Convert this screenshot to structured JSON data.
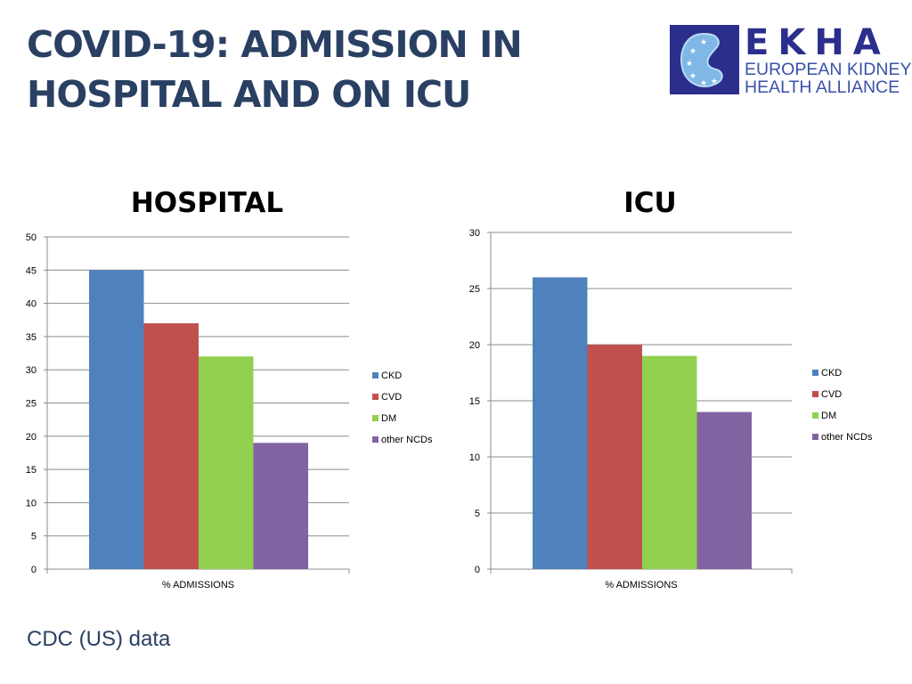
{
  "slide": {
    "title": "COVID-19: ADMISSION IN\nHOSPITAL AND ON ICU",
    "source_note": "CDC (US) data"
  },
  "logo": {
    "word": "EKHA",
    "line1": "EUROPEAN KIDNEY",
    "line2": "HEALTH ALLIANCE",
    "colors": {
      "mark": "#2b2e8c",
      "text": "#3a52a8"
    }
  },
  "chart_data": [
    {
      "type": "bar",
      "title": "HOSPITAL",
      "categories": [
        "% ADMISSIONS"
      ],
      "series": [
        {
          "name": "CKD",
          "values": [
            45
          ],
          "color": "#4f81bd"
        },
        {
          "name": "CVD",
          "values": [
            37
          ],
          "color": "#c0504d"
        },
        {
          "name": "DM",
          "values": [
            32
          ],
          "color": "#92d050"
        },
        {
          "name": "other NCDs",
          "values": [
            19
          ],
          "color": "#8064a2"
        }
      ],
      "ylim": [
        0,
        50
      ],
      "yticks": [
        0,
        5,
        10,
        15,
        20,
        25,
        30,
        35,
        40,
        45,
        50
      ],
      "grid": true,
      "legend": "right"
    },
    {
      "type": "bar",
      "title": "ICU",
      "categories": [
        "% ADMISSIONS"
      ],
      "series": [
        {
          "name": "CKD",
          "values": [
            26
          ],
          "color": "#4f81bd"
        },
        {
          "name": "CVD",
          "values": [
            20
          ],
          "color": "#c0504d"
        },
        {
          "name": "DM",
          "values": [
            19
          ],
          "color": "#92d050"
        },
        {
          "name": "other NCDs",
          "values": [
            14
          ],
          "color": "#8064a2"
        }
      ],
      "ylim": [
        0,
        30
      ],
      "yticks": [
        0,
        5,
        10,
        15,
        20,
        25,
        30
      ],
      "grid": true,
      "legend": "right"
    }
  ]
}
